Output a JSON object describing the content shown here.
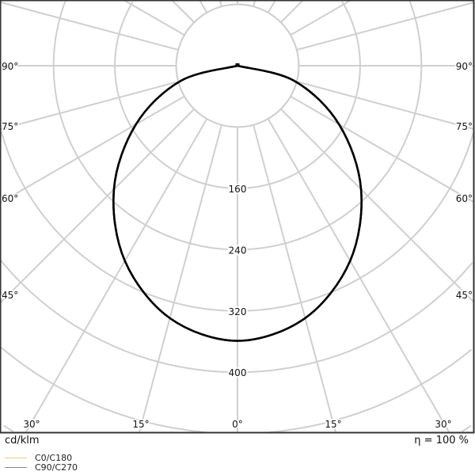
{
  "chart_data": {
    "type": "polar",
    "unit_label": "cd/klm",
    "efficiency_label": "η = 100 %",
    "radial_ticks": [
      160,
      240,
      320,
      400
    ],
    "radial_grid": [
      80,
      160,
      240,
      320,
      400,
      480,
      560
    ],
    "angle_grid_step_deg": 15,
    "angle_labels": {
      "sides": [
        "90°",
        "75°",
        "60°",
        "45°"
      ],
      "bottom": [
        "30°",
        "15°",
        "0°",
        "15°",
        "30°"
      ]
    },
    "angles_deg": [
      0,
      15,
      30,
      45,
      60,
      75,
      90
    ],
    "series": [
      {
        "name": "C0/C180",
        "color": "#f0c48a",
        "values": [
          359,
          341,
          294,
          228,
          153,
          77,
          0
        ]
      },
      {
        "name": "C90/C270",
        "color": "#888888",
        "values": [
          359,
          341,
          294,
          228,
          153,
          77,
          0
        ]
      }
    ],
    "curve_color": "#000000",
    "grid": true,
    "legend_position": "bottom-left"
  }
}
